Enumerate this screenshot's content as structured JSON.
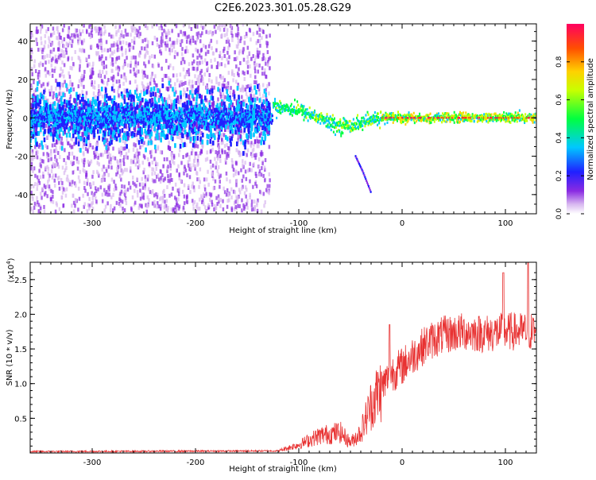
{
  "title": "C2E6.2023.301.05.28.G29",
  "chart_data": [
    {
      "type": "heatmap",
      "xlabel": "Height of straight line (km)",
      "ylabel": "Frequency (Hz)",
      "xlim": [
        -360,
        130
      ],
      "ylim": [
        -50,
        49
      ],
      "xticks": [
        -300,
        -200,
        -100,
        0,
        100
      ],
      "yticks": [
        -40,
        -20,
        0,
        20,
        40
      ],
      "colorbar": {
        "label": "Normalized spectral amplitude",
        "range": [
          0,
          1
        ],
        "ticks": [
          "0.0",
          "0.2",
          "0.4",
          "0.6",
          "0.8"
        ],
        "colormap": "rainbow (white-violet-blue-cyan-green-yellow-red)"
      },
      "features": {
        "noisy_region_x": [
          -360,
          -128
        ],
        "noise_spread_hz": 49,
        "main_trace": [
          {
            "x": -120,
            "y": 6
          },
          {
            "x": -100,
            "y": 4
          },
          {
            "x": -80,
            "y": 0
          },
          {
            "x": -65,
            "y": -4
          },
          {
            "x": -50,
            "y": -4
          },
          {
            "x": -35,
            "y": -2
          },
          {
            "x": -20,
            "y": 0
          },
          {
            "x": 0,
            "y": 0
          },
          {
            "x": 50,
            "y": 0
          },
          {
            "x": 130,
            "y": 0
          }
        ],
        "secondary_trace": [
          {
            "x": -45,
            "y": -20
          },
          {
            "x": -38,
            "y": -28
          },
          {
            "x": -30,
            "y": -39
          }
        ]
      }
    },
    {
      "type": "line",
      "xlabel": "Height of straight line (km)",
      "ylabel": "SNR (10 * v/v)",
      "yexponent_label": "(x10",
      "yexponent": "4",
      "yexponent_close": ")",
      "xlim": [
        -360,
        130
      ],
      "ylim": [
        0,
        2.75
      ],
      "xticks": [
        -300,
        -200,
        -100,
        0,
        100
      ],
      "yticks": [
        0.5,
        1.0,
        1.5,
        2.0,
        2.5
      ],
      "ytick_labels": [
        "0.5",
        "1.0",
        "1.5",
        "2.0",
        "2.5"
      ],
      "series": [
        {
          "color": "#e83232",
          "trend": [
            {
              "x": -360,
              "y": 0.02
            },
            {
              "x": -120,
              "y": 0.03
            },
            {
              "x": -100,
              "y": 0.12
            },
            {
              "x": -80,
              "y": 0.25
            },
            {
              "x": -60,
              "y": 0.3
            },
            {
              "x": -50,
              "y": 0.15
            },
            {
              "x": -40,
              "y": 0.3
            },
            {
              "x": -30,
              "y": 0.7
            },
            {
              "x": -20,
              "y": 0.95
            },
            {
              "x": -10,
              "y": 1.15
            },
            {
              "x": 0,
              "y": 1.25
            },
            {
              "x": 10,
              "y": 1.4
            },
            {
              "x": 25,
              "y": 1.6
            },
            {
              "x": 40,
              "y": 1.7
            },
            {
              "x": 60,
              "y": 1.75
            },
            {
              "x": 80,
              "y": 1.72
            },
            {
              "x": 100,
              "y": 1.75
            },
            {
              "x": 130,
              "y": 1.75
            }
          ],
          "peaks": [
            {
              "x": -12,
              "y": 1.85
            },
            {
              "x": 98,
              "y": 2.6
            },
            {
              "x": 122,
              "y": 2.75
            }
          ]
        }
      ]
    }
  ]
}
